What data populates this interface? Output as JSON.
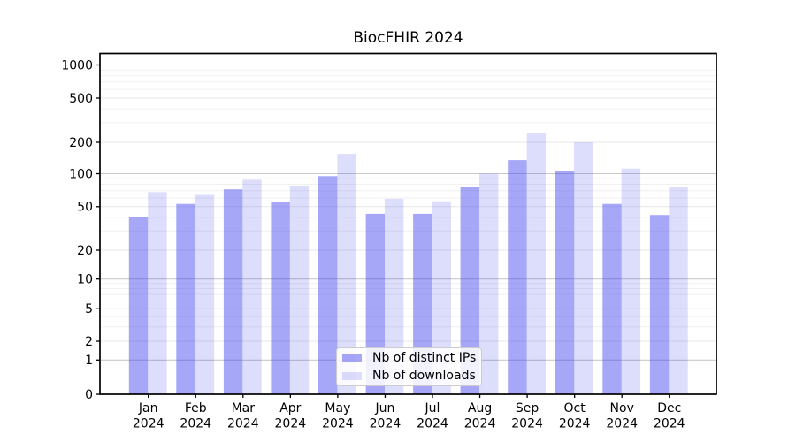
{
  "chart_data": {
    "type": "bar",
    "title": "BiocFHIR 2024",
    "yscale": "symlog",
    "grid": true,
    "ylim": [
      0,
      1280
    ],
    "y_ticks": [
      0,
      1,
      2,
      5,
      10,
      20,
      50,
      100,
      200,
      500,
      1000
    ],
    "year": "2024",
    "months": [
      "Jan",
      "Feb",
      "Mar",
      "Apr",
      "May",
      "Jun",
      "Jul",
      "Aug",
      "Sep",
      "Oct",
      "Nov",
      "Dec"
    ],
    "series": [
      {
        "name": "Nb of distinct IPs",
        "color": "#4545f0",
        "fill_opacity": 0.47,
        "values": [
          40,
          53,
          72,
          55,
          95,
          43,
          43,
          75,
          135,
          106,
          53,
          42
        ]
      },
      {
        "name": "Nb of downloads",
        "color": "#4545f0",
        "fill_opacity": 0.18,
        "values": [
          68,
          64,
          88,
          78,
          155,
          59,
          56,
          100,
          240,
          200,
          112,
          75
        ]
      }
    ],
    "legend": {
      "position": "lower center",
      "items": [
        "Nb of distinct IPs",
        "Nb of downloads"
      ]
    }
  }
}
